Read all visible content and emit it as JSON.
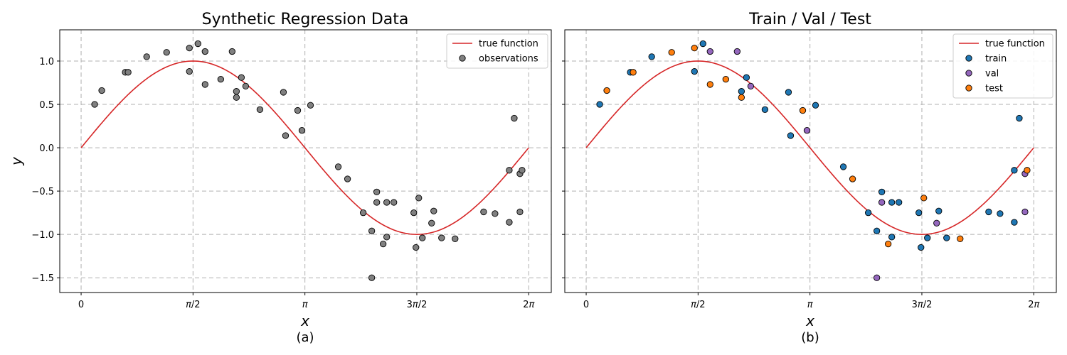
{
  "figure": {
    "background": "#ffffff"
  },
  "colors": {
    "true_function": "#d62728",
    "observations": "#808080",
    "train": "#1f77b4",
    "val": "#9467bd",
    "test": "#ff7f0e",
    "grid": "#b0b0b0",
    "marker_edge": "#000000"
  },
  "chart_data": [
    {
      "type": "scatter",
      "title": "Synthetic Regression Data",
      "panel_label": "(a)",
      "xlabel": "x",
      "ylabel": "y",
      "xlim": [
        -0.3,
        6.6
      ],
      "ylim": [
        -1.67,
        1.36
      ],
      "xticks": [
        0,
        1.5708,
        3.1416,
        4.7124,
        6.2832
      ],
      "xtick_labels": [
        "0",
        "π/2",
        "π",
        "3π/2",
        "2π"
      ],
      "yticks": [
        -1.5,
        -1.0,
        -0.5,
        0.0,
        0.5,
        1.0
      ],
      "ytick_labels": [
        "−1.5",
        "−1.0",
        "−0.5",
        "0.0",
        "0.5",
        "1.0"
      ],
      "grid": true,
      "legend_position": "top-right",
      "series": [
        {
          "name": "true function",
          "kind": "line",
          "function": "sin",
          "x_range": [
            0,
            6.2832
          ],
          "color": "#d62728"
        },
        {
          "name": "observations",
          "kind": "scatter",
          "color": "#808080",
          "points": [
            [
              0.19,
              0.5
            ],
            [
              0.29,
              0.66
            ],
            [
              0.62,
              0.87
            ],
            [
              0.66,
              0.87
            ],
            [
              0.92,
              1.05
            ],
            [
              1.2,
              1.1
            ],
            [
              1.52,
              1.15
            ],
            [
              1.52,
              0.88
            ],
            [
              1.64,
              1.2
            ],
            [
              1.74,
              1.11
            ],
            [
              1.74,
              0.73
            ],
            [
              1.96,
              0.79
            ],
            [
              2.12,
              1.11
            ],
            [
              2.18,
              0.65
            ],
            [
              2.18,
              0.58
            ],
            [
              2.25,
              0.81
            ],
            [
              2.31,
              0.71
            ],
            [
              2.51,
              0.44
            ],
            [
              2.84,
              0.64
            ],
            [
              2.87,
              0.14
            ],
            [
              3.04,
              0.43
            ],
            [
              3.1,
              0.2
            ],
            [
              3.22,
              0.49
            ],
            [
              3.61,
              -0.22
            ],
            [
              3.74,
              -0.36
            ],
            [
              3.96,
              -0.75
            ],
            [
              4.08,
              -0.96
            ],
            [
              4.08,
              -1.5
            ],
            [
              4.15,
              -0.51
            ],
            [
              4.15,
              -0.63
            ],
            [
              4.24,
              -1.11
            ],
            [
              4.29,
              -0.63
            ],
            [
              4.29,
              -1.03
            ],
            [
              4.39,
              -0.63
            ],
            [
              4.67,
              -0.75
            ],
            [
              4.7,
              -1.15
            ],
            [
              4.74,
              -0.58
            ],
            [
              4.79,
              -1.04
            ],
            [
              4.92,
              -0.87
            ],
            [
              4.95,
              -0.73
            ],
            [
              5.06,
              -1.04
            ],
            [
              5.25,
              -1.05
            ],
            [
              5.65,
              -0.74
            ],
            [
              5.81,
              -0.76
            ],
            [
              6.01,
              -0.86
            ],
            [
              6.01,
              -0.26
            ],
            [
              6.08,
              0.34
            ],
            [
              6.16,
              -0.3
            ],
            [
              6.16,
              -0.74
            ],
            [
              6.19,
              -0.26
            ]
          ]
        }
      ]
    },
    {
      "type": "scatter",
      "title": "Train / Val / Test",
      "panel_label": "(b)",
      "xlabel": "x",
      "ylabel": "",
      "xlim": [
        -0.3,
        6.6
      ],
      "ylim": [
        -1.67,
        1.36
      ],
      "xticks": [
        0,
        1.5708,
        3.1416,
        4.7124,
        6.2832
      ],
      "xtick_labels": [
        "0",
        "π/2",
        "π",
        "3π/2",
        "2π"
      ],
      "yticks": [
        -1.5,
        -1.0,
        -0.5,
        0.0,
        0.5,
        1.0
      ],
      "ytick_labels": [],
      "grid": true,
      "legend_position": "top-right",
      "series": [
        {
          "name": "true function",
          "kind": "line",
          "function": "sin",
          "x_range": [
            0,
            6.2832
          ],
          "color": "#d62728"
        },
        {
          "name": "train",
          "kind": "scatter",
          "color": "#1f77b4",
          "points": [
            [
              0.19,
              0.5
            ],
            [
              0.62,
              0.87
            ],
            [
              0.92,
              1.05
            ],
            [
              1.52,
              0.88
            ],
            [
              1.64,
              1.2
            ],
            [
              2.18,
              0.65
            ],
            [
              2.25,
              0.81
            ],
            [
              2.51,
              0.44
            ],
            [
              2.84,
              0.64
            ],
            [
              2.87,
              0.14
            ],
            [
              3.22,
              0.49
            ],
            [
              3.61,
              -0.22
            ],
            [
              3.96,
              -0.75
            ],
            [
              4.08,
              -0.96
            ],
            [
              4.15,
              -0.51
            ],
            [
              4.29,
              -0.63
            ],
            [
              4.29,
              -1.03
            ],
            [
              4.39,
              -0.63
            ],
            [
              4.67,
              -0.75
            ],
            [
              4.7,
              -1.15
            ],
            [
              4.79,
              -1.04
            ],
            [
              4.95,
              -0.73
            ],
            [
              5.06,
              -1.04
            ],
            [
              5.65,
              -0.74
            ],
            [
              5.81,
              -0.76
            ],
            [
              6.01,
              -0.86
            ],
            [
              6.01,
              -0.26
            ],
            [
              6.08,
              0.34
            ]
          ]
        },
        {
          "name": "val",
          "kind": "scatter",
          "color": "#9467bd",
          "points": [
            [
              1.74,
              1.11
            ],
            [
              2.12,
              1.11
            ],
            [
              2.31,
              0.71
            ],
            [
              3.1,
              0.2
            ],
            [
              4.08,
              -1.5
            ],
            [
              4.15,
              -0.63
            ],
            [
              4.92,
              -0.87
            ],
            [
              6.16,
              -0.3
            ],
            [
              6.16,
              -0.74
            ]
          ]
        },
        {
          "name": "test",
          "kind": "scatter",
          "color": "#ff7f0e",
          "points": [
            [
              0.29,
              0.66
            ],
            [
              0.66,
              0.87
            ],
            [
              1.2,
              1.1
            ],
            [
              1.52,
              1.15
            ],
            [
              1.74,
              0.73
            ],
            [
              1.96,
              0.79
            ],
            [
              2.18,
              0.58
            ],
            [
              3.04,
              0.43
            ],
            [
              3.74,
              -0.36
            ],
            [
              4.24,
              -1.11
            ],
            [
              4.74,
              -0.58
            ],
            [
              5.25,
              -1.05
            ],
            [
              6.19,
              -0.26
            ]
          ]
        }
      ]
    }
  ]
}
